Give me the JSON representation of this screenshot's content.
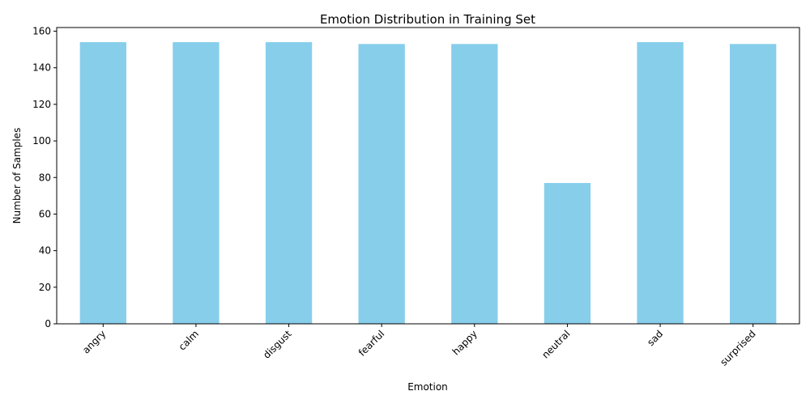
{
  "chart_data": {
    "type": "bar",
    "title": "Emotion Distribution in Training Set",
    "xlabel": "Emotion",
    "ylabel": "Number of Samples",
    "categories": [
      "angry",
      "calm",
      "disgust",
      "fearful",
      "happy",
      "neutral",
      "sad",
      "surprised"
    ],
    "values": [
      154,
      154,
      154,
      153,
      153,
      77,
      154,
      153
    ],
    "ylim": [
      0,
      162
    ],
    "yticks": [
      0,
      20,
      40,
      60,
      80,
      100,
      120,
      140,
      160
    ],
    "bar_color": "#87CEEB",
    "xtick_rotation": 45,
    "grid": false,
    "legend": false
  }
}
